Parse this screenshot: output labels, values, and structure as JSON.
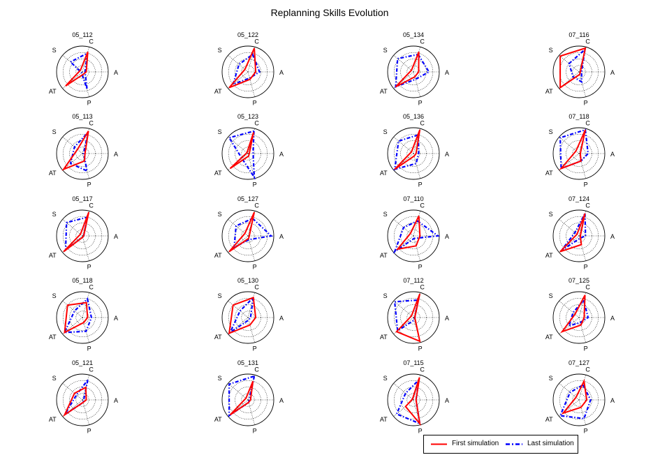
{
  "figure": {
    "title": "Replanning Skills Evolution",
    "colors": {
      "first": "#ff0000",
      "last": "#0000ff",
      "axis": "#000000",
      "grid": "#000000"
    }
  },
  "legend": {
    "first_label": "First simulation",
    "last_label": "Last simulation"
  },
  "chart_data": {
    "type": "radar",
    "axes": [
      "C",
      "A",
      "P",
      "AT",
      "S"
    ],
    "rmax": 1,
    "rings": [
      0.25,
      0.5,
      0.75,
      1
    ],
    "grid": true,
    "legend_position": "bottom-right",
    "series_names": [
      "First simulation",
      "Last simulation"
    ],
    "panels": [
      {
        "title": "05_112",
        "first": [
          0.8,
          0.15,
          0.1,
          0.85,
          0.1
        ],
        "last": [
          0.75,
          0.1,
          0.7,
          0.05,
          0.6
        ]
      },
      {
        "title": "05_122",
        "first": [
          0.95,
          0.3,
          0.3,
          0.95,
          0.15
        ],
        "last": [
          0.7,
          0.45,
          0.25,
          0.75,
          0.45
        ]
      },
      {
        "title": "05_134",
        "first": [
          0.8,
          0.2,
          0.2,
          0.9,
          0.1
        ],
        "last": [
          0.7,
          0.6,
          0.3,
          0.9,
          0.8
        ]
      },
      {
        "title": "07_116",
        "first": [
          0.95,
          0.05,
          0.1,
          0.95,
          0.95
        ],
        "last": [
          0.9,
          0.1,
          0.4,
          0.3,
          0.5
        ]
      },
      {
        "title": "05_113",
        "first": [
          0.9,
          0.1,
          0.3,
          0.95,
          0.25
        ],
        "last": [
          0.85,
          0.05,
          0.7,
          0.6,
          0.4
        ]
      },
      {
        "title": "05_123",
        "first": [
          0.85,
          0.05,
          0.1,
          0.9,
          0.05
        ],
        "last": [
          0.9,
          0.2,
          0.95,
          0.3,
          0.95
        ]
      },
      {
        "title": "05_136",
        "first": [
          0.95,
          0.1,
          0.1,
          0.95,
          0.1
        ],
        "last": [
          0.75,
          0.2,
          0.4,
          0.95,
          0.75
        ]
      },
      {
        "title": "07_118",
        "first": [
          0.95,
          0.05,
          0.3,
          0.9,
          0.15
        ],
        "last": [
          0.95,
          0.35,
          0.3,
          0.9,
          0.95
        ]
      },
      {
        "title": "05_117",
        "first": [
          0.95,
          0.05,
          0.05,
          0.95,
          0.1
        ],
        "last": [
          0.75,
          0.05,
          0.05,
          0.85,
          0.8
        ]
      },
      {
        "title": "05_127",
        "first": [
          0.95,
          0.05,
          0.1,
          0.95,
          0.15
        ],
        "last": [
          0.7,
          0.9,
          0.15,
          0.7,
          0.6
        ]
      },
      {
        "title": "07_110",
        "first": [
          0.8,
          0.25,
          0.4,
          0.8,
          0.15
        ],
        "last": [
          0.6,
          0.95,
          0.1,
          0.95,
          0.5
        ]
      },
      {
        "title": "07_124",
        "first": [
          0.9,
          0.05,
          0.35,
          0.95,
          0.1
        ],
        "last": [
          0.9,
          0.25,
          0.1,
          0.9,
          0.2
        ]
      },
      {
        "title": "05_118",
        "first": [
          0.6,
          0.2,
          0.2,
          0.9,
          0.75
        ],
        "last": [
          0.75,
          0.35,
          0.55,
          0.9,
          0.4
        ]
      },
      {
        "title": "05_130",
        "first": [
          0.8,
          0.3,
          0.3,
          0.95,
          0.75
        ],
        "last": [
          0.8,
          0.1,
          0.1,
          0.9,
          0.4
        ]
      },
      {
        "title": "07_112",
        "first": [
          0.95,
          0.05,
          0.95,
          0.85,
          0.1
        ],
        "last": [
          0.7,
          0.05,
          0.1,
          0.8,
          0.95
        ]
      },
      {
        "title": "07_125",
        "first": [
          0.9,
          0.2,
          0.3,
          0.85,
          0.2
        ],
        "last": [
          0.7,
          0.35,
          0.2,
          0.5,
          0.3
        ]
      },
      {
        "title": "05_121",
        "first": [
          0.5,
          0.15,
          0.1,
          0.9,
          0.4
        ],
        "last": [
          0.8,
          0.05,
          0.1,
          0.9,
          0.3
        ]
      },
      {
        "title": "05_131",
        "first": [
          0.75,
          0.1,
          0.1,
          0.9,
          0.1
        ],
        "last": [
          0.95,
          0.05,
          0.1,
          0.95,
          0.95
        ]
      },
      {
        "title": "07_115",
        "first": [
          0.9,
          0.1,
          0.95,
          0.4,
          0.05
        ],
        "last": [
          0.8,
          0.1,
          0.95,
          0.85,
          0.4
        ]
      },
      {
        "title": "07_127",
        "first": [
          0.75,
          0.3,
          0.3,
          0.8,
          0.15
        ],
        "last": [
          0.6,
          0.45,
          0.75,
          0.95,
          0.45
        ]
      }
    ]
  }
}
